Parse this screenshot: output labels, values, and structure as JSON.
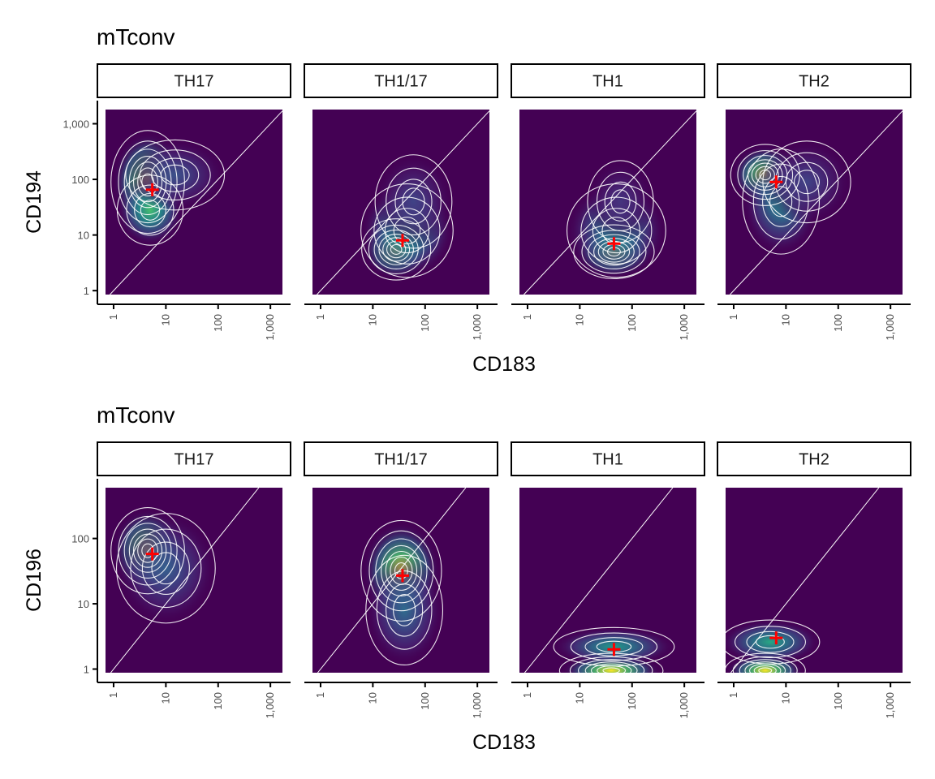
{
  "colors": {
    "density_low": "#440154",
    "density_mid": "#21918c",
    "density_high": "#fde725",
    "contour": "#ffffff",
    "median_marker": "#ff0000",
    "strip_border": "#000000",
    "axis": "#000000"
  },
  "chart_data": [
    {
      "type": "heatmap",
      "subtype": "2d-density-facets",
      "title": "mTconv",
      "xlabel": "CD183",
      "ylabel": "CD194",
      "x_scale": "log10",
      "y_scale": "log10",
      "xlim": [
        0.7,
        1700
      ],
      "ylim": [
        0.85,
        1800
      ],
      "x_ticks": [
        {
          "value": 1,
          "label": "1"
        },
        {
          "value": 10,
          "label": "10"
        },
        {
          "value": 100,
          "label": "100"
        },
        {
          "value": 1000,
          "label": "1,000"
        }
      ],
      "y_ticks": [
        {
          "value": 1,
          "label": "1"
        },
        {
          "value": 10,
          "label": "10"
        },
        {
          "value": 100,
          "label": "100"
        },
        {
          "value": 1000,
          "label": "1,000"
        }
      ],
      "diagonal": "y = x",
      "facets": [
        {
          "label": "TH17",
          "median": {
            "x": 5.5,
            "y": 65
          },
          "blobs": [
            {
              "x": 4.5,
              "y": 90,
              "sx": 0.32,
              "sy": 0.42,
              "w": 1.0
            },
            {
              "x": 5,
              "y": 28,
              "sx": 0.3,
              "sy": 0.3,
              "w": 0.7
            },
            {
              "x": 15,
              "y": 120,
              "sx": 0.45,
              "sy": 0.3,
              "w": 0.25
            }
          ]
        },
        {
          "label": "TH1/17",
          "median": {
            "x": 37,
            "y": 8
          },
          "blobs": [
            {
              "x": 28,
              "y": 5.5,
              "sx": 0.3,
              "sy": 0.25,
              "w": 1.0
            },
            {
              "x": 45,
              "y": 12,
              "sx": 0.42,
              "sy": 0.4,
              "w": 0.6
            },
            {
              "x": 60,
              "y": 40,
              "sx": 0.35,
              "sy": 0.4,
              "w": 0.2
            }
          ]
        },
        {
          "label": "TH1",
          "median": {
            "x": 45,
            "y": 7
          },
          "blobs": [
            {
              "x": 45,
              "y": 5,
              "sx": 0.35,
              "sy": 0.22,
              "w": 1.0
            },
            {
              "x": 50,
              "y": 12,
              "sx": 0.45,
              "sy": 0.4,
              "w": 0.5
            },
            {
              "x": 60,
              "y": 40,
              "sx": 0.3,
              "sy": 0.35,
              "w": 0.15
            }
          ]
        },
        {
          "label": "TH2",
          "median": {
            "x": 6.5,
            "y": 90
          },
          "blobs": [
            {
              "x": 4,
              "y": 120,
              "sx": 0.3,
              "sy": 0.25,
              "w": 1.0
            },
            {
              "x": 8,
              "y": 40,
              "sx": 0.35,
              "sy": 0.45,
              "w": 0.5
            },
            {
              "x": 25,
              "y": 90,
              "sx": 0.4,
              "sy": 0.35,
              "w": 0.2
            }
          ]
        }
      ]
    },
    {
      "type": "heatmap",
      "subtype": "2d-density-facets",
      "title": "mTconv",
      "xlabel": "CD183",
      "ylabel": "CD196",
      "x_scale": "log10",
      "y_scale": "log10",
      "xlim": [
        0.7,
        1700
      ],
      "ylim": [
        0.88,
        600
      ],
      "x_ticks": [
        {
          "value": 1,
          "label": "1"
        },
        {
          "value": 10,
          "label": "10"
        },
        {
          "value": 100,
          "label": "100"
        },
        {
          "value": 1000,
          "label": "1,000"
        }
      ],
      "y_ticks": [
        {
          "value": 1,
          "label": "1"
        },
        {
          "value": 10,
          "label": "10"
        },
        {
          "value": 100,
          "label": "100"
        }
      ],
      "diagonal": "y = x",
      "facets": [
        {
          "label": "TH17",
          "median": {
            "x": 5.5,
            "y": 58
          },
          "blobs": [
            {
              "x": 4.5,
              "y": 65,
              "sx": 0.32,
              "sy": 0.3,
              "w": 1.0
            },
            {
              "x": 10,
              "y": 35,
              "sx": 0.45,
              "sy": 0.4,
              "w": 0.3
            }
          ]
        },
        {
          "label": "TH1/17",
          "median": {
            "x": 37,
            "y": 27
          },
          "blobs": [
            {
              "x": 35,
              "y": 32,
              "sx": 0.35,
              "sy": 0.35,
              "w": 1.0
            },
            {
              "x": 40,
              "y": 8,
              "sx": 0.35,
              "sy": 0.4,
              "w": 0.35
            }
          ]
        },
        {
          "label": "TH1",
          "median": {
            "x": 45,
            "y": 2
          },
          "blobs": [
            {
              "x": 40,
              "y": 0.95,
              "sx": 0.45,
              "sy": 0.12,
              "w": 1.0
            },
            {
              "x": 45,
              "y": 2.2,
              "sx": 0.55,
              "sy": 0.14,
              "w": 0.55
            }
          ]
        },
        {
          "label": "TH2",
          "median": {
            "x": 6.5,
            "y": 3
          },
          "blobs": [
            {
              "x": 4,
              "y": 0.95,
              "sx": 0.35,
              "sy": 0.12,
              "w": 1.0
            },
            {
              "x": 5,
              "y": 2.6,
              "sx": 0.45,
              "sy": 0.16,
              "w": 0.6
            }
          ]
        }
      ]
    }
  ]
}
